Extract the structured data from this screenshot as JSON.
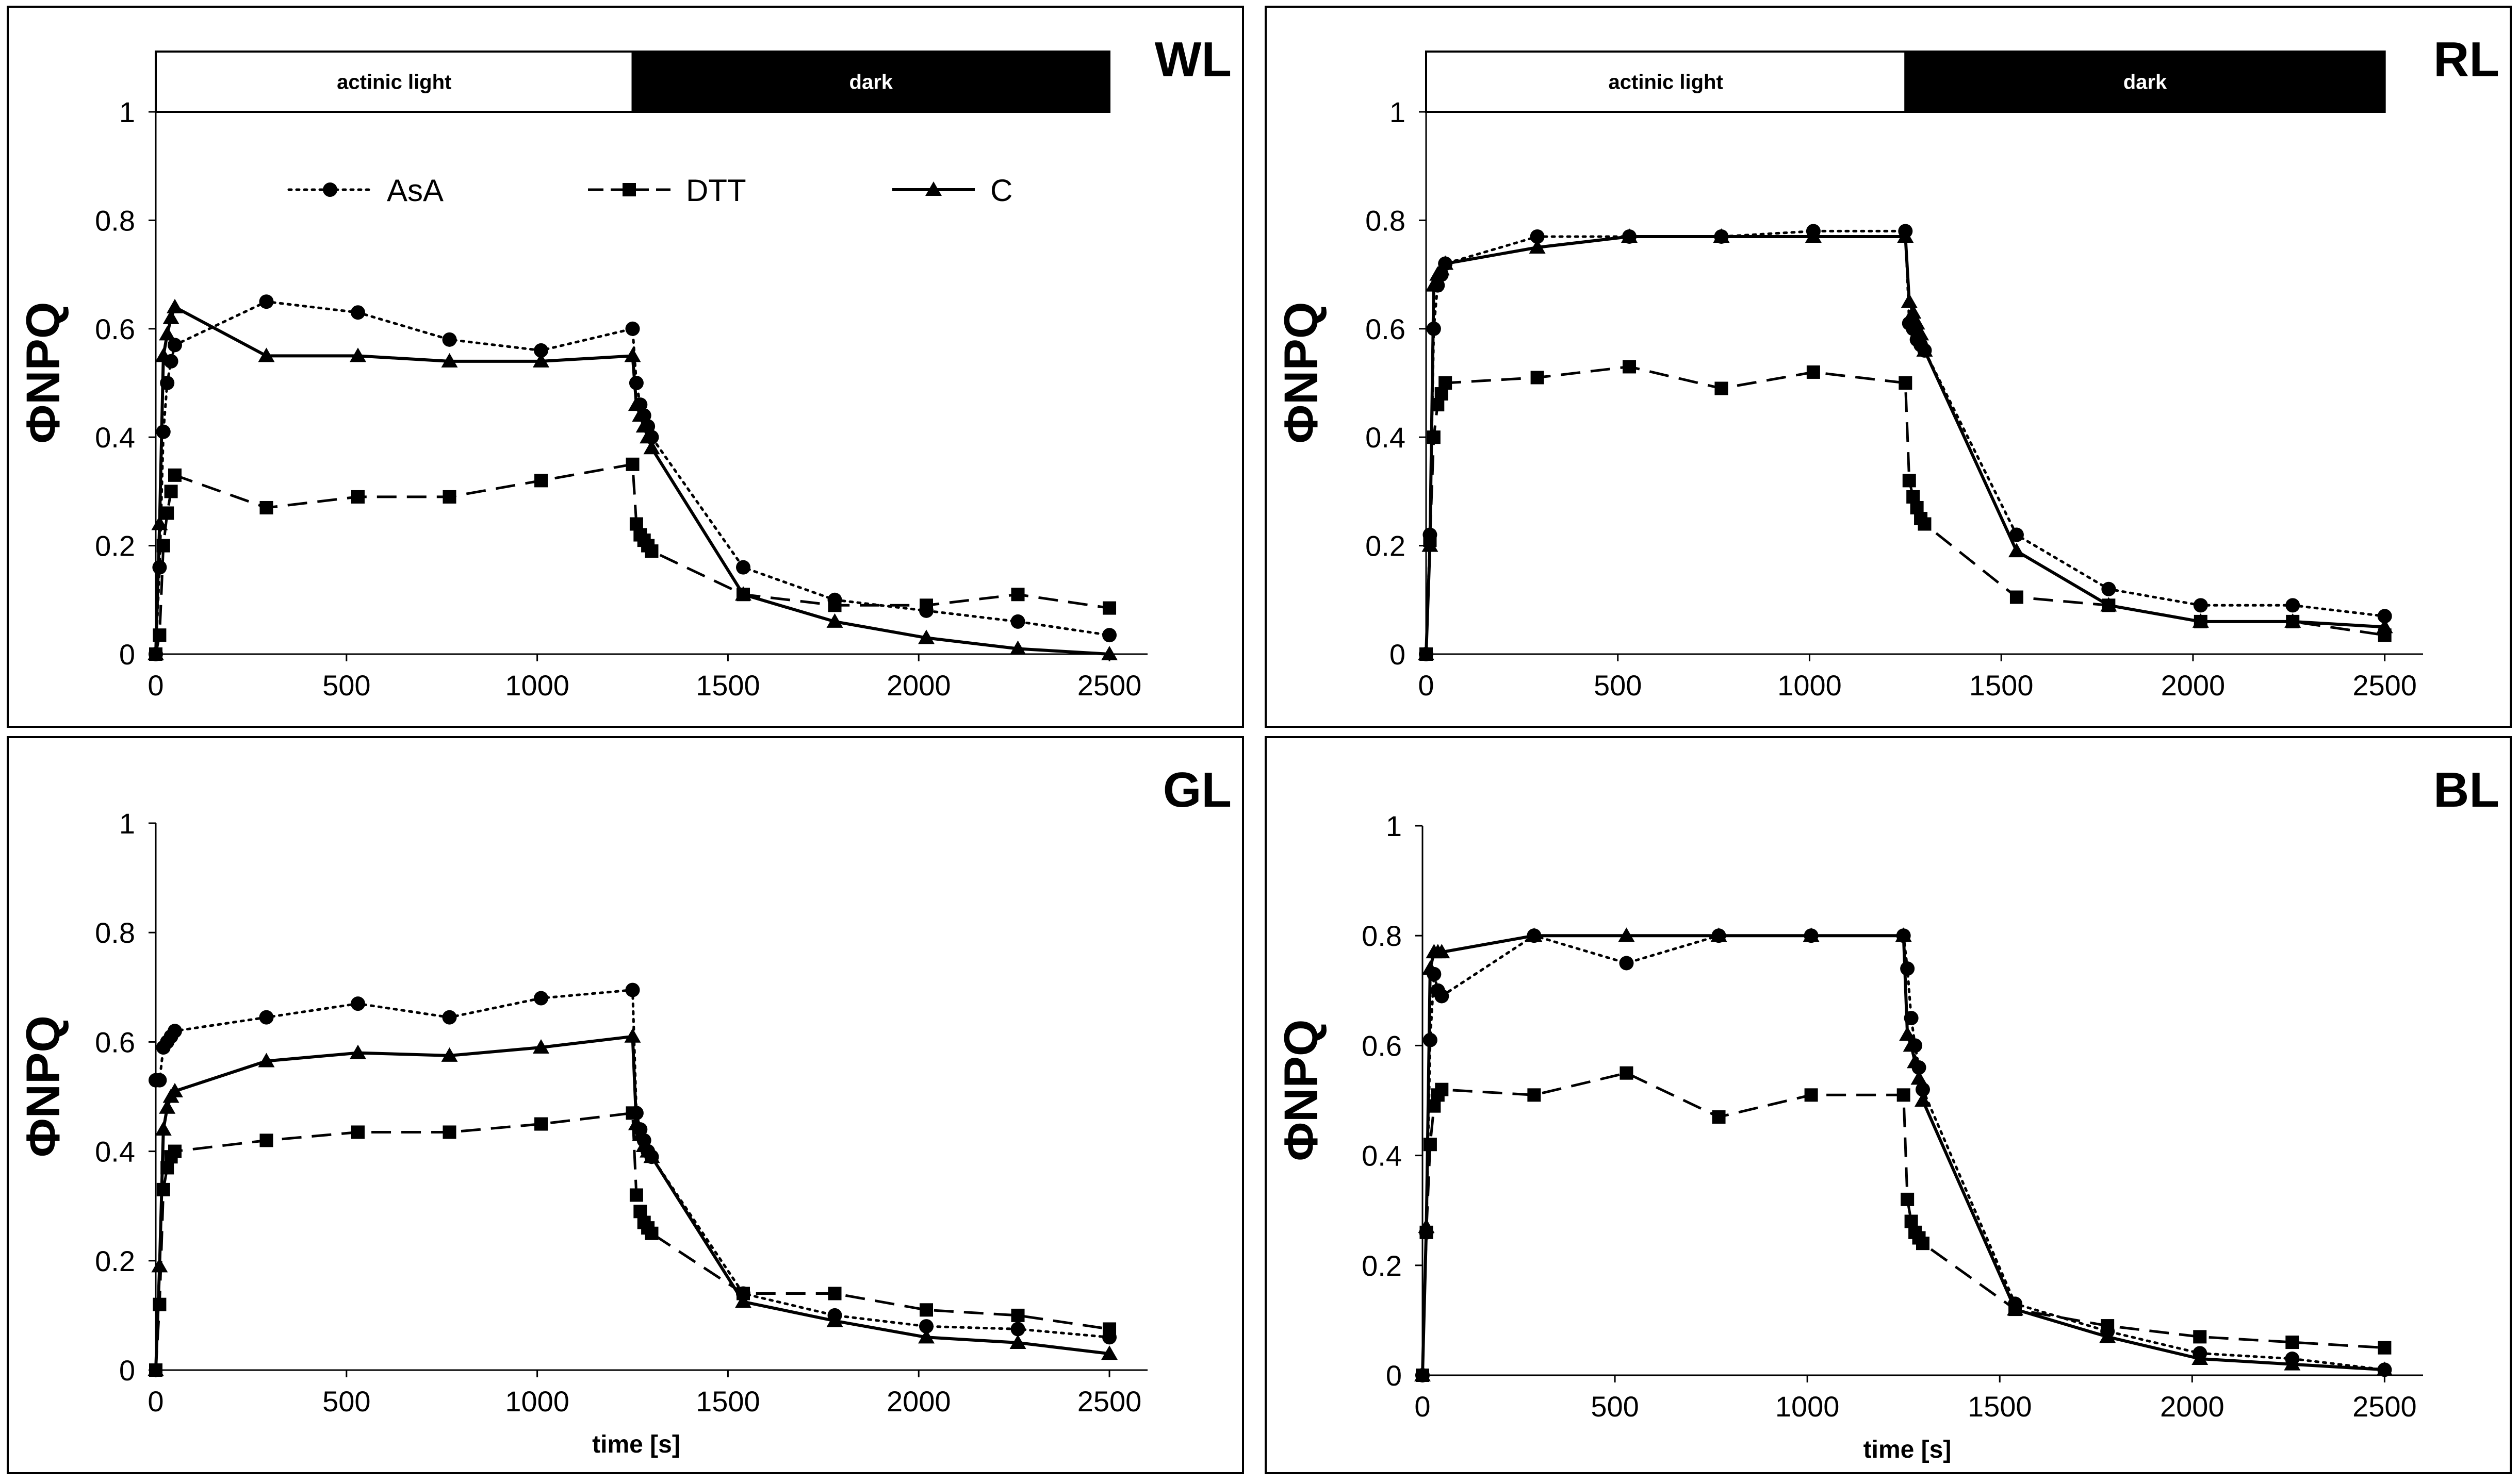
{
  "figure": {
    "axis_x_label": "time [s]",
    "axis_y_label": "ΦNPQ",
    "bar_labels": {
      "light": "actinic light",
      "dark": "dark"
    },
    "legend": [
      {
        "name": "AsA",
        "marker": "circle",
        "dash": "dotted"
      },
      {
        "name": "DTT",
        "marker": "square",
        "dash": "dashed"
      },
      {
        "name": "C",
        "marker": "triangle",
        "dash": "solid"
      }
    ],
    "colors": {
      "ink": "#000000",
      "bar_dark": "#000000",
      "bar_light": "#ffffff",
      "background": "#ffffff"
    }
  },
  "chart_data": [
    {
      "type": "line",
      "panel_label": "WL",
      "xlim": [
        0,
        2600
      ],
      "ylim": [
        0,
        1
      ],
      "x_ticks": [
        0,
        500,
        1000,
        1500,
        2000,
        2500
      ],
      "y_ticks": [
        0,
        0.2,
        0.4,
        0.6,
        0.8,
        1
      ],
      "x_tick_labels": [
        "0",
        "500",
        "1000",
        "1500",
        "2000",
        "2500"
      ],
      "y_tick_labels": [
        "0",
        "0.2",
        "0.4",
        "0.6",
        "0.8",
        "1"
      ],
      "xlabel": "",
      "ylabel": "ΦNPQ",
      "light_period": [
        0,
        1250
      ],
      "dark_period": [
        1250,
        2500
      ],
      "show_legend": true,
      "series": [
        {
          "name": "AsA",
          "x": [
            0,
            10,
            20,
            30,
            40,
            50,
            290,
            530,
            770,
            1010,
            1250,
            1260,
            1270,
            1280,
            1290,
            1300,
            1540,
            1780,
            2020,
            2260,
            2500
          ],
          "y": [
            0,
            0.16,
            0.41,
            0.5,
            0.54,
            0.57,
            0.65,
            0.63,
            0.58,
            0.56,
            0.6,
            0.5,
            0.46,
            0.44,
            0.42,
            0.4,
            0.16,
            0.1,
            0.08,
            0.06,
            0.035
          ]
        },
        {
          "name": "DTT",
          "x": [
            0,
            10,
            20,
            30,
            40,
            50,
            290,
            530,
            770,
            1010,
            1250,
            1260,
            1270,
            1280,
            1290,
            1300,
            1540,
            1780,
            2020,
            2260,
            2500
          ],
          "y": [
            0,
            0.035,
            0.2,
            0.26,
            0.3,
            0.33,
            0.27,
            0.29,
            0.29,
            0.32,
            0.35,
            0.24,
            0.22,
            0.21,
            0.2,
            0.19,
            0.11,
            0.09,
            0.09,
            0.11,
            0.085
          ]
        },
        {
          "name": "C",
          "x": [
            0,
            10,
            20,
            30,
            40,
            50,
            290,
            530,
            770,
            1010,
            1250,
            1260,
            1270,
            1280,
            1290,
            1300,
            1540,
            1780,
            2020,
            2260,
            2500
          ],
          "y": [
            0,
            0.24,
            0.55,
            0.59,
            0.62,
            0.64,
            0.55,
            0.55,
            0.54,
            0.54,
            0.55,
            0.46,
            0.44,
            0.42,
            0.4,
            0.38,
            0.11,
            0.06,
            0.03,
            0.01,
            0.0
          ]
        }
      ]
    },
    {
      "type": "line",
      "panel_label": "RL",
      "xlim": [
        0,
        2600
      ],
      "ylim": [
        0,
        1
      ],
      "x_ticks": [
        0,
        500,
        1000,
        1500,
        2000,
        2500
      ],
      "y_ticks": [
        0,
        0.2,
        0.4,
        0.6,
        0.8,
        1
      ],
      "x_tick_labels": [
        "0",
        "500",
        "1000",
        "1500",
        "2000",
        "2500"
      ],
      "y_tick_labels": [
        "0",
        "0.2",
        "0.4",
        "0.6",
        "0.8",
        "1"
      ],
      "xlabel": "",
      "ylabel": "ΦNPQ",
      "light_period": [
        0,
        1250
      ],
      "dark_period": [
        1250,
        2500
      ],
      "show_legend": false,
      "series": [
        {
          "name": "AsA",
          "x": [
            0,
            10,
            20,
            30,
            40,
            50,
            290,
            530,
            770,
            1010,
            1250,
            1260,
            1270,
            1280,
            1290,
            1300,
            1540,
            1780,
            2020,
            2260,
            2500
          ],
          "y": [
            0,
            0.22,
            0.6,
            0.68,
            0.7,
            0.72,
            0.77,
            0.77,
            0.77,
            0.78,
            0.78,
            0.61,
            0.6,
            0.58,
            0.57,
            0.56,
            0.22,
            0.12,
            0.09,
            0.09,
            0.07
          ]
        },
        {
          "name": "DTT",
          "x": [
            0,
            10,
            20,
            30,
            40,
            50,
            290,
            530,
            770,
            1010,
            1250,
            1260,
            1270,
            1280,
            1290,
            1300,
            1540,
            1780,
            2020,
            2260,
            2500
          ],
          "y": [
            0,
            0.21,
            0.4,
            0.46,
            0.48,
            0.5,
            0.51,
            0.53,
            0.49,
            0.52,
            0.5,
            0.32,
            0.29,
            0.27,
            0.25,
            0.24,
            0.105,
            0.09,
            0.06,
            0.06,
            0.035
          ]
        },
        {
          "name": "C",
          "x": [
            0,
            10,
            20,
            30,
            40,
            50,
            290,
            530,
            770,
            1010,
            1250,
            1260,
            1270,
            1280,
            1290,
            1300,
            1540,
            1780,
            2020,
            2260,
            2500
          ],
          "y": [
            0,
            0.2,
            0.68,
            0.7,
            0.71,
            0.72,
            0.75,
            0.77,
            0.77,
            0.77,
            0.77,
            0.65,
            0.63,
            0.61,
            0.59,
            0.56,
            0.19,
            0.09,
            0.06,
            0.06,
            0.05
          ]
        }
      ]
    },
    {
      "type": "line",
      "panel_label": "GL",
      "xlim": [
        0,
        2600
      ],
      "ylim": [
        0,
        1
      ],
      "x_ticks": [
        0,
        500,
        1000,
        1500,
        2000,
        2500
      ],
      "y_ticks": [
        0,
        0.2,
        0.4,
        0.6,
        0.8,
        1
      ],
      "x_tick_labels": [
        "0",
        "500",
        "1000",
        "1500",
        "2000",
        "2500"
      ],
      "y_tick_labels": [
        "0",
        "0.2",
        "0.4",
        "0.6",
        "0.8",
        "1"
      ],
      "xlabel": "time [s]",
      "ylabel": "ΦNPQ",
      "show_legend": false,
      "series": [
        {
          "name": "AsA",
          "x": [
            0,
            10,
            20,
            30,
            40,
            50,
            290,
            530,
            770,
            1010,
            1250,
            1260,
            1270,
            1280,
            1290,
            1300,
            1540,
            1780,
            2020,
            2260,
            2500
          ],
          "y": [
            0.53,
            0.53,
            0.59,
            0.6,
            0.61,
            0.62,
            0.645,
            0.67,
            0.645,
            0.68,
            0.695,
            0.47,
            0.44,
            0.42,
            0.4,
            0.39,
            0.14,
            0.1,
            0.08,
            0.075,
            0.06
          ]
        },
        {
          "name": "DTT",
          "x": [
            0,
            10,
            20,
            30,
            40,
            50,
            290,
            530,
            770,
            1010,
            1250,
            1260,
            1270,
            1280,
            1290,
            1300,
            1540,
            1780,
            2020,
            2260,
            2500
          ],
          "y": [
            0,
            0.12,
            0.33,
            0.37,
            0.39,
            0.4,
            0.42,
            0.435,
            0.435,
            0.45,
            0.47,
            0.32,
            0.29,
            0.27,
            0.26,
            0.25,
            0.14,
            0.14,
            0.11,
            0.1,
            0.075
          ]
        },
        {
          "name": "C",
          "x": [
            0,
            10,
            20,
            30,
            40,
            50,
            290,
            530,
            770,
            1010,
            1250,
            1260,
            1270,
            1280,
            1290,
            1300,
            1540,
            1780,
            2020,
            2260,
            2500
          ],
          "y": [
            0,
            0.19,
            0.44,
            0.48,
            0.5,
            0.51,
            0.565,
            0.58,
            0.575,
            0.59,
            0.61,
            0.45,
            0.43,
            0.41,
            0.4,
            0.39,
            0.125,
            0.09,
            0.06,
            0.05,
            0.03
          ]
        }
      ]
    },
    {
      "type": "line",
      "panel_label": "BL",
      "xlim": [
        0,
        2600
      ],
      "ylim": [
        0,
        1
      ],
      "x_ticks": [
        0,
        500,
        1000,
        1500,
        2000,
        2500
      ],
      "y_ticks": [
        0,
        0.2,
        0.4,
        0.6,
        0.8,
        1
      ],
      "x_tick_labels": [
        "0",
        "500",
        "1000",
        "1500",
        "2000",
        "2500"
      ],
      "y_tick_labels": [
        "0",
        "0.2",
        "0.4",
        "0.6",
        "0.8",
        "1"
      ],
      "xlabel": "time [s]",
      "ylabel": "ΦNPQ",
      "show_legend": false,
      "series": [
        {
          "name": "AsA",
          "x": [
            0,
            10,
            20,
            30,
            40,
            50,
            290,
            530,
            770,
            1010,
            1250,
            1260,
            1270,
            1280,
            1290,
            1300,
            1540,
            1780,
            2020,
            2260,
            2500
          ],
          "y": [
            0,
            0.26,
            0.61,
            0.73,
            0.7,
            0.69,
            0.8,
            0.75,
            0.8,
            0.8,
            0.8,
            0.74,
            0.65,
            0.6,
            0.56,
            0.52,
            0.13,
            0.08,
            0.04,
            0.03,
            0.01
          ]
        },
        {
          "name": "DTT",
          "x": [
            0,
            10,
            20,
            30,
            40,
            50,
            290,
            530,
            770,
            1010,
            1250,
            1260,
            1270,
            1280,
            1290,
            1300,
            1540,
            1780,
            2020,
            2260,
            2500
          ],
          "y": [
            0,
            0.26,
            0.42,
            0.49,
            0.51,
            0.52,
            0.51,
            0.55,
            0.47,
            0.51,
            0.51,
            0.32,
            0.28,
            0.26,
            0.25,
            0.24,
            0.12,
            0.09,
            0.07,
            0.06,
            0.05
          ]
        },
        {
          "name": "C",
          "x": [
            0,
            10,
            20,
            30,
            40,
            50,
            290,
            530,
            770,
            1010,
            1250,
            1260,
            1270,
            1280,
            1290,
            1300,
            1540,
            1780,
            2020,
            2260,
            2500
          ],
          "y": [
            0,
            0.27,
            0.74,
            0.77,
            0.77,
            0.77,
            0.8,
            0.8,
            0.8,
            0.8,
            0.8,
            0.62,
            0.6,
            0.57,
            0.54,
            0.5,
            0.12,
            0.07,
            0.03,
            0.02,
            0.01
          ]
        }
      ]
    }
  ]
}
